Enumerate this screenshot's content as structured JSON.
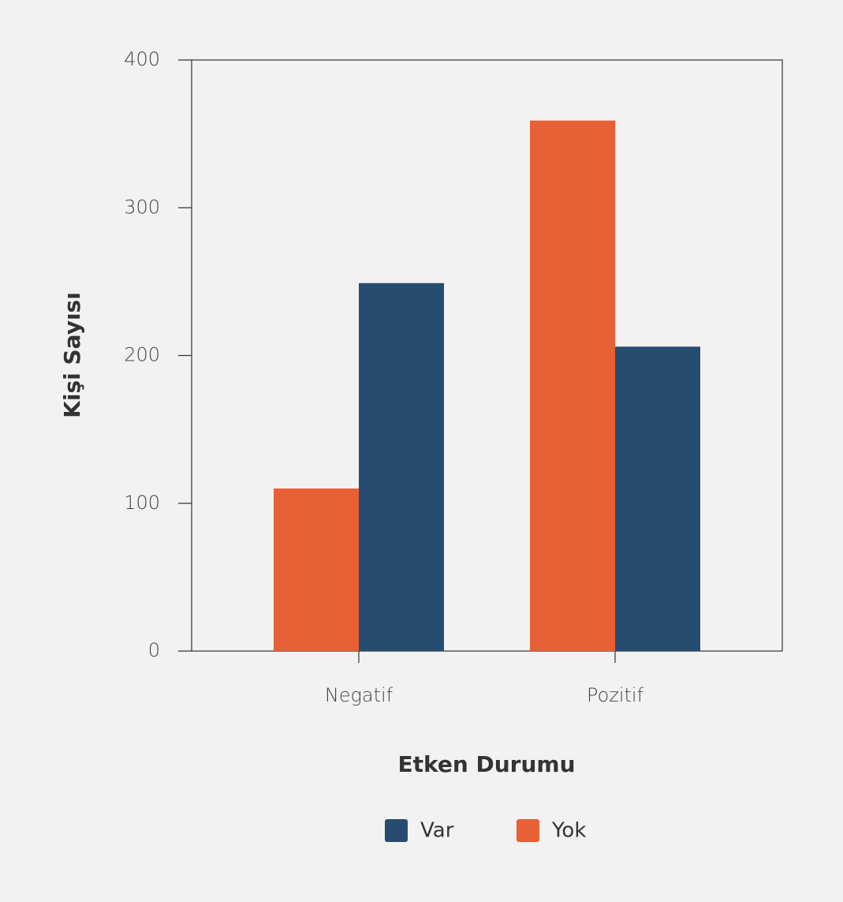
{
  "chart_data": {
    "type": "bar",
    "categories": [
      "Negatif",
      "Pozitif"
    ],
    "series": [
      {
        "name": "Yok",
        "color": "#e86035",
        "values": [
          110,
          359
        ]
      },
      {
        "name": "Var",
        "color": "#264d70",
        "values": [
          249,
          206
        ]
      }
    ],
    "x_label": "Etken Durumu",
    "y_label": "Kişi Sayısı",
    "ylim": [
      0,
      400
    ],
    "yticks": [
      0,
      100,
      200,
      300,
      400
    ],
    "grid": false
  }
}
